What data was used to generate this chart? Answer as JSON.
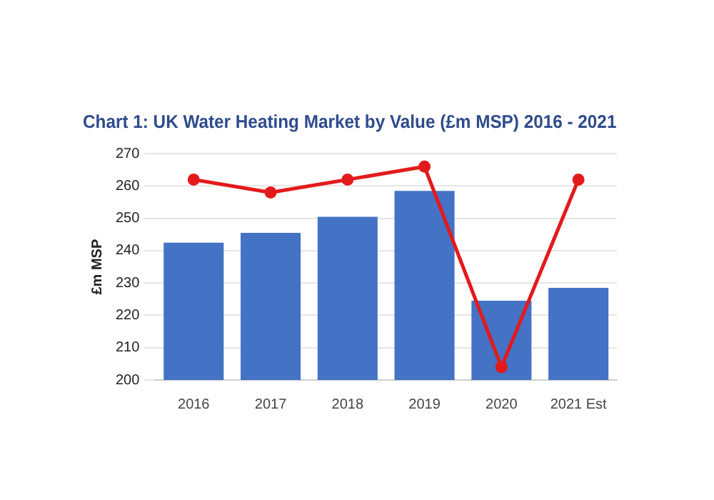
{
  "chart_data": {
    "type": "bar",
    "title": "Chart 1: UK Water Heating Market by Value (£m MSP) 2016 - 2021",
    "ylabel": "£m MSP",
    "categories": [
      "2016",
      "2017",
      "2018",
      "2019",
      "2020",
      "2021 Est"
    ],
    "series": [
      {
        "color": "#4472c4",
        "values": [
          242.5,
          245.5,
          250.5,
          258.5,
          224.5,
          228.5
        ]
      },
      {
        "type": "line",
        "color": "#e31a1c",
        "values": [
          262,
          258,
          262,
          266,
          204,
          262
        ],
        "marker": "circle",
        "line_style": "solid"
      }
    ],
    "ylim": [
      200,
      270
    ],
    "yticks": [
      200,
      210,
      220,
      230,
      240,
      250,
      260,
      270
    ],
    "grid": "y",
    "legend": false
  }
}
